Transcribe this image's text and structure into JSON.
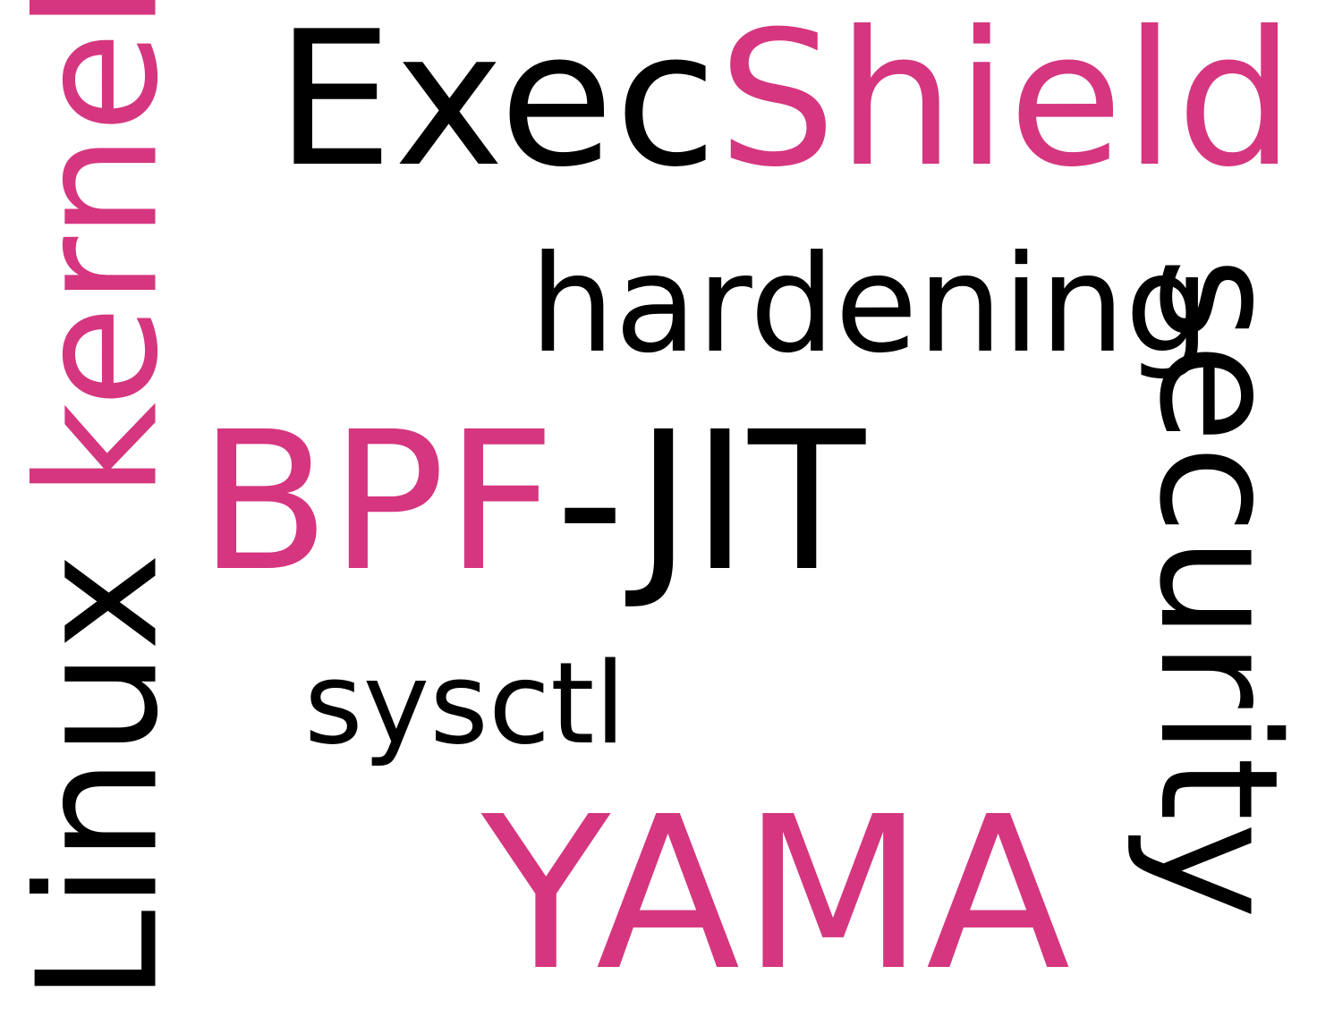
{
  "colors": {
    "pink": "#d5367f",
    "black": "#000000",
    "background": "#ffffff"
  },
  "words": {
    "linux": "Linux",
    "kernel": "kernel",
    "exec": "Exec",
    "shield": "Shield",
    "hardening": "hardening",
    "bpf": "BPF",
    "jit": "-JIT",
    "sysctl": "sysctl",
    "yama": "YAMA",
    "security": "security"
  }
}
